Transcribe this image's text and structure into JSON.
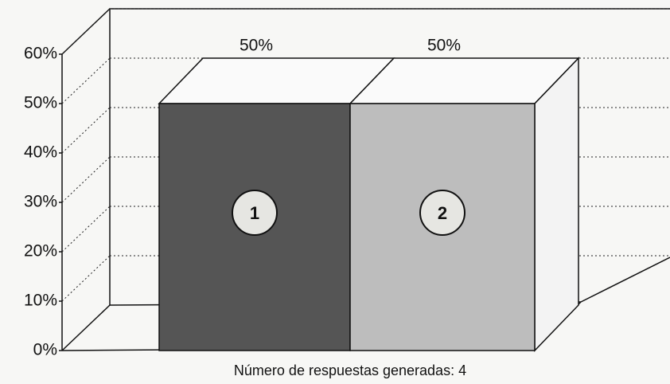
{
  "chart_data": {
    "type": "bar3d",
    "categories": [
      "1",
      "2"
    ],
    "values": [
      50,
      50
    ],
    "value_labels": [
      "50%",
      "50%"
    ],
    "colors": [
      "#555555",
      "#bdbdbd"
    ],
    "ylim": [
      0,
      60
    ],
    "yticks": [
      {
        "value": 0,
        "label": "0%"
      },
      {
        "value": 10,
        "label": "10%"
      },
      {
        "value": 20,
        "label": "20%"
      },
      {
        "value": 30,
        "label": "30%"
      },
      {
        "value": 40,
        "label": "40%"
      },
      {
        "value": 50,
        "label": "50%"
      },
      {
        "value": 60,
        "label": "60%"
      }
    ],
    "grid": true,
    "x_label": "Número de respuestas generadas: 4"
  }
}
